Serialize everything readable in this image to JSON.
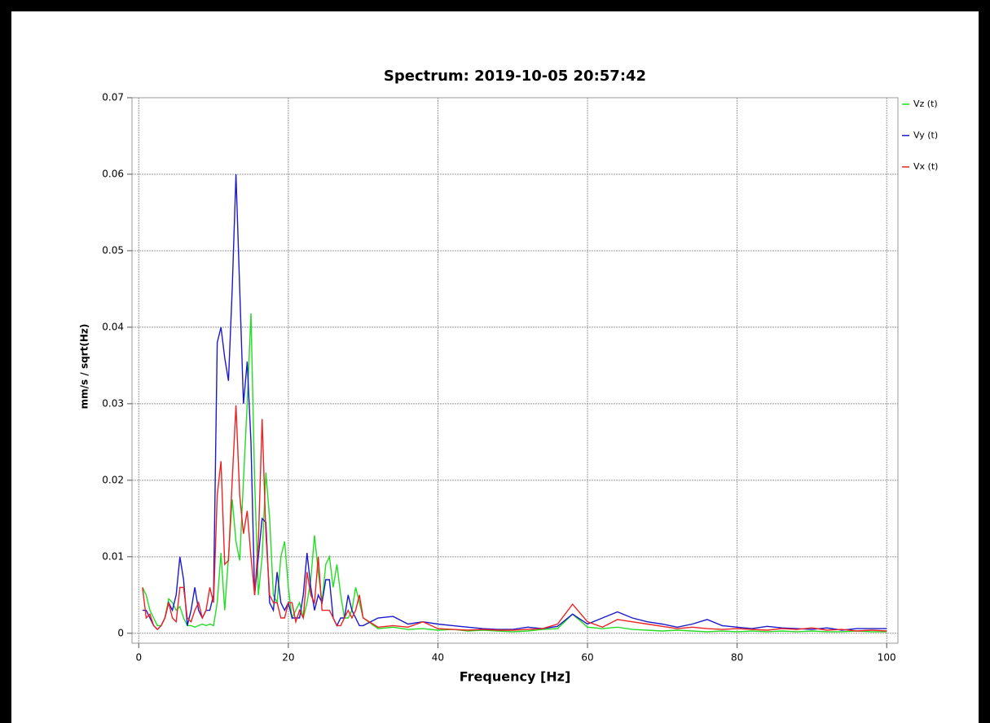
{
  "chart_data": {
    "type": "line",
    "title": "Spectrum: 2019-10-05 20:57:42",
    "xlabel": "Frequency [Hz]",
    "ylabel": "mm/s / sqrt(Hz)",
    "x": [
      0.5,
      1,
      1.5,
      2,
      2.5,
      3,
      3.5,
      4,
      4.5,
      5,
      5.5,
      6,
      6.5,
      7,
      7.5,
      8,
      8.5,
      9,
      9.5,
      10,
      10.5,
      11,
      11.5,
      12,
      12.5,
      13,
      13.5,
      14,
      14.5,
      15,
      15.5,
      16,
      16.5,
      17,
      17.5,
      18,
      18.5,
      19,
      19.5,
      20,
      20.5,
      21,
      21.5,
      22,
      22.5,
      23,
      23.5,
      24,
      24.5,
      25,
      25.5,
      26,
      26.5,
      27,
      27.5,
      28,
      28.5,
      29,
      29.5,
      30,
      32,
      34,
      36,
      38,
      40,
      42,
      44,
      46,
      48,
      50,
      52,
      54,
      56,
      58,
      60,
      62,
      64,
      66,
      68,
      70,
      72,
      74,
      76,
      78,
      80,
      82,
      84,
      86,
      88,
      90,
      92,
      94,
      96,
      98,
      100
    ],
    "series": [
      {
        "name": "Vz (t)",
        "color": "#22dd22",
        "values": [
          0.006,
          0.005,
          0.003,
          0.002,
          0.001,
          0.001,
          0.002,
          0.0045,
          0.004,
          0.003,
          0.0035,
          0.002,
          0.001,
          0.001,
          0.0008,
          0.001,
          0.0012,
          0.001,
          0.0012,
          0.001,
          0.004,
          0.0105,
          0.003,
          0.01,
          0.0175,
          0.012,
          0.0095,
          0.02,
          0.03,
          0.0418,
          0.02,
          0.005,
          0.01,
          0.021,
          0.015,
          0.005,
          0.004,
          0.01,
          0.012,
          0.006,
          0.002,
          0.003,
          0.004,
          0.002,
          0.004,
          0.007,
          0.0128,
          0.008,
          0.004,
          0.009,
          0.01,
          0.006,
          0.009,
          0.005,
          0.002,
          0.002,
          0.003,
          0.006,
          0.004,
          0.002,
          0.0006,
          0.0008,
          0.0005,
          0.0006,
          0.0004,
          0.0005,
          0.0003,
          0.0004,
          0.0003,
          0.0002,
          0.0003,
          0.0005,
          0.0006,
          0.0025,
          0.0008,
          0.0006,
          0.0008,
          0.0005,
          0.0004,
          0.0003,
          0.0004,
          0.0003,
          0.0002,
          0.0003,
          0.0002,
          0.0003,
          0.0002,
          0.0003,
          0.0002,
          0.0003,
          0.0002,
          0.0002,
          0.0003,
          0.0002,
          0.0002
        ]
      },
      {
        "name": "Vy (t)",
        "color": "#1a1acc",
        "values": [
          0.003,
          0.003,
          0.002,
          0.001,
          0.0005,
          0.001,
          0.002,
          0.004,
          0.003,
          0.005,
          0.01,
          0.007,
          0.001,
          0.003,
          0.006,
          0.003,
          0.002,
          0.003,
          0.003,
          0.005,
          0.038,
          0.04,
          0.036,
          0.033,
          0.045,
          0.06,
          0.045,
          0.03,
          0.0355,
          0.025,
          0.005,
          0.01,
          0.015,
          0.0145,
          0.004,
          0.003,
          0.008,
          0.004,
          0.003,
          0.004,
          0.002,
          0.002,
          0.002,
          0.005,
          0.0105,
          0.006,
          0.003,
          0.005,
          0.004,
          0.007,
          0.007,
          0.002,
          0.001,
          0.002,
          0.002,
          0.005,
          0.003,
          0.002,
          0.001,
          0.001,
          0.002,
          0.0022,
          0.0012,
          0.0015,
          0.0012,
          0.001,
          0.0008,
          0.0006,
          0.0005,
          0.0005,
          0.0008,
          0.0006,
          0.0009,
          0.0025,
          0.0012,
          0.002,
          0.0028,
          0.002,
          0.0015,
          0.0012,
          0.0008,
          0.0012,
          0.0018,
          0.001,
          0.0008,
          0.0006,
          0.0009,
          0.0007,
          0.0006,
          0.0005,
          0.0007,
          0.0004,
          0.0006,
          0.0006,
          0.0006
        ]
      },
      {
        "name": "Vx (t)",
        "color": "#ee2222",
        "values": [
          0.006,
          0.002,
          0.0025,
          0.001,
          0.0005,
          0.001,
          0.002,
          0.004,
          0.002,
          0.0015,
          0.006,
          0.006,
          0.002,
          0.0015,
          0.003,
          0.004,
          0.002,
          0.003,
          0.006,
          0.004,
          0.018,
          0.0225,
          0.009,
          0.0095,
          0.02,
          0.0298,
          0.018,
          0.013,
          0.016,
          0.01,
          0.005,
          0.012,
          0.028,
          0.013,
          0.005,
          0.004,
          0.004,
          0.002,
          0.002,
          0.004,
          0.004,
          0.0015,
          0.003,
          0.002,
          0.008,
          0.005,
          0.004,
          0.01,
          0.003,
          0.003,
          0.003,
          0.002,
          0.001,
          0.001,
          0.002,
          0.003,
          0.002,
          0.003,
          0.005,
          0.002,
          0.0008,
          0.001,
          0.0008,
          0.0015,
          0.0006,
          0.0005,
          0.0004,
          0.0005,
          0.0004,
          0.0004,
          0.0005,
          0.0006,
          0.0012,
          0.0038,
          0.0015,
          0.0008,
          0.0018,
          0.0015,
          0.0012,
          0.0009,
          0.0006,
          0.0008,
          0.0006,
          0.0005,
          0.0006,
          0.0005,
          0.0004,
          0.0006,
          0.0005,
          0.0007,
          0.0004,
          0.0005,
          0.0003,
          0.0004,
          0.0003
        ]
      }
    ],
    "xlim": [
      -0.9,
      101.5
    ],
    "xticks": [
      0,
      20,
      40,
      60,
      80,
      100
    ],
    "ylim": [
      -0.0013,
      0.07
    ],
    "yticks": [
      0,
      0.01,
      0.02,
      0.03,
      0.04,
      0.05,
      0.06,
      0.07
    ],
    "grid": true,
    "legend": "right"
  }
}
